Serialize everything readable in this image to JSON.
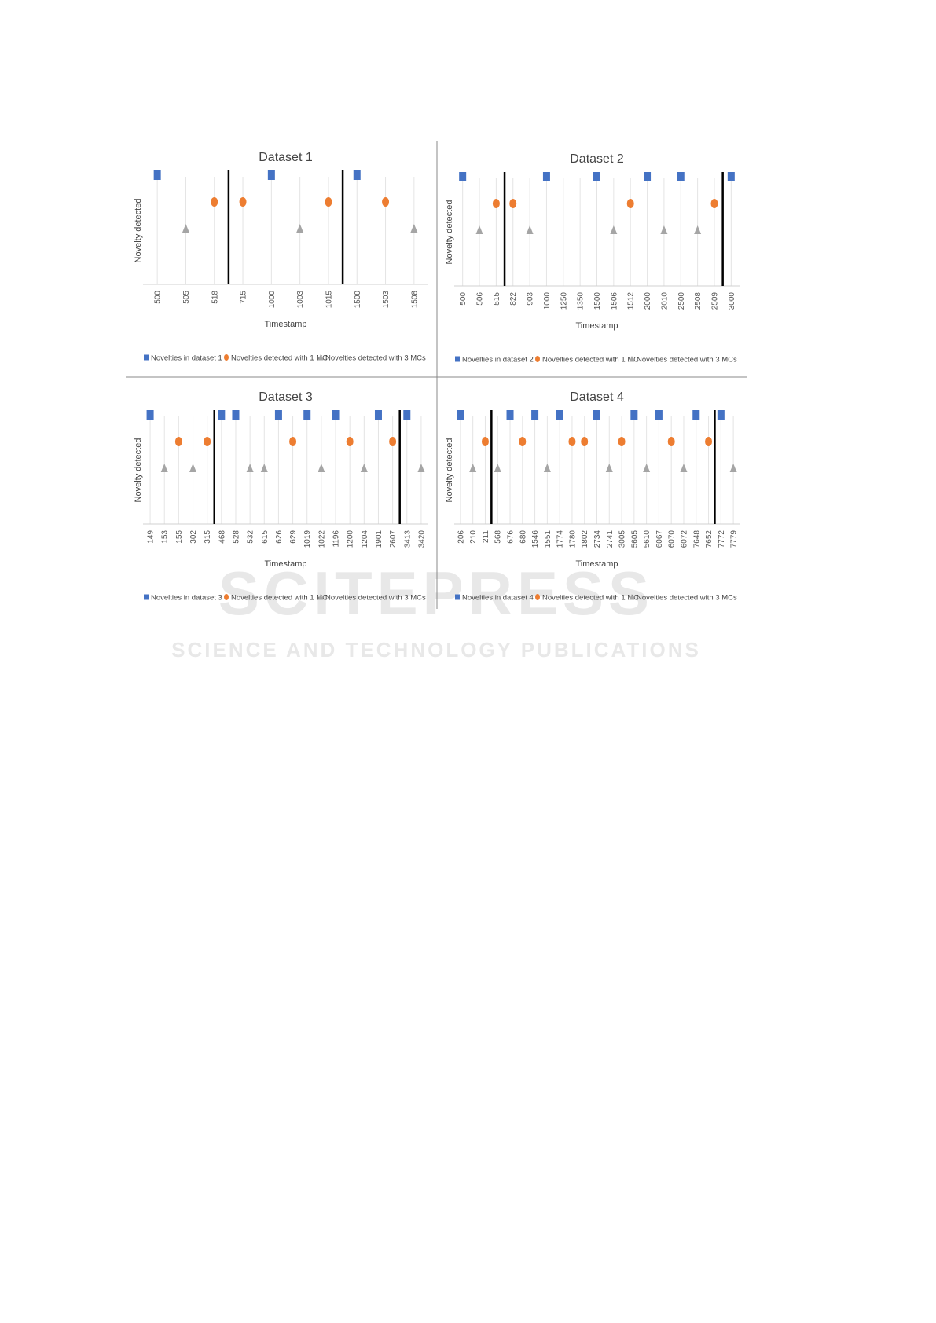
{
  "watermark": {
    "title": "SCITEPRESS",
    "subtitle": "SCIENCE AND TECHNOLOGY PUBLICATIONS"
  },
  "chart_data": [
    {
      "type": "event",
      "title": "Dataset 1",
      "y_label": "Novelty detected",
      "x_label": "Timestamp",
      "categories": [
        "500",
        "505",
        "518",
        "715",
        "1000",
        "1003",
        "1015",
        "1500",
        "1503",
        "1508"
      ],
      "series": [
        {
          "name": "Novelties in dataset 1",
          "color": "#4472c4",
          "marker": "square",
          "values": [
            1,
            null,
            null,
            null,
            1,
            null,
            null,
            1,
            null,
            null
          ]
        },
        {
          "name": "Novelties detected with 1 MC",
          "color": "#ed7d31",
          "marker": "circle",
          "values": [
            null,
            null,
            1,
            1,
            null,
            null,
            1,
            null,
            1,
            null
          ]
        },
        {
          "name": "Novelties detected with 3 MCs",
          "color": "#a5a5a5",
          "marker": "triangle",
          "values": [
            null,
            1,
            null,
            null,
            null,
            1,
            null,
            null,
            null,
            1
          ]
        }
      ],
      "drift_after": [
        "518",
        "1015"
      ]
    },
    {
      "type": "event",
      "title": "Dataset 2",
      "y_label": "Novelty detected",
      "x_label": "Timestamp",
      "categories": [
        "500",
        "506",
        "515",
        "822",
        "903",
        "1000",
        "1250",
        "1350",
        "1500",
        "1506",
        "1512",
        "2000",
        "2010",
        "2500",
        "2508",
        "2509",
        "3000"
      ],
      "series": [
        {
          "name": "Novelties in dataset 2",
          "color": "#4472c4",
          "marker": "square",
          "values": [
            1,
            null,
            null,
            null,
            null,
            1,
            null,
            null,
            1,
            null,
            null,
            1,
            null,
            1,
            null,
            null,
            1
          ]
        },
        {
          "name": "Novelties detected with 1 MC",
          "color": "#ed7d31",
          "marker": "circle",
          "values": [
            null,
            null,
            1,
            1,
            null,
            null,
            null,
            null,
            null,
            null,
            1,
            null,
            null,
            null,
            null,
            1,
            null
          ]
        },
        {
          "name": "Novelties detected with 3 MCs",
          "color": "#a5a5a5",
          "marker": "triangle",
          "values": [
            null,
            1,
            null,
            null,
            1,
            null,
            null,
            null,
            null,
            1,
            null,
            null,
            1,
            null,
            1,
            null,
            null
          ]
        }
      ],
      "drift_after": [
        "515",
        "2509"
      ]
    },
    {
      "type": "event",
      "title": "Dataset 3",
      "y_label": "Novelty detected",
      "x_label": "Timestamp",
      "categories": [
        "149",
        "153",
        "155",
        "302",
        "315",
        "468",
        "528",
        "532",
        "615",
        "626",
        "629",
        "1019",
        "1022",
        "1196",
        "1200",
        "1204",
        "1901",
        "2607",
        "3413",
        "3420"
      ],
      "series": [
        {
          "name": "Novelties in dataset 3",
          "color": "#4472c4",
          "marker": "square",
          "values": [
            1,
            null,
            null,
            null,
            null,
            1,
            1,
            null,
            null,
            1,
            null,
            1,
            null,
            1,
            null,
            null,
            1,
            null,
            1,
            null
          ]
        },
        {
          "name": "Novelties detected with 1 MC",
          "color": "#ed7d31",
          "marker": "circle",
          "values": [
            null,
            null,
            1,
            null,
            1,
            null,
            null,
            null,
            null,
            null,
            1,
            null,
            null,
            null,
            1,
            null,
            null,
            1,
            null,
            null
          ]
        },
        {
          "name": "Novelties detected with 3 MCs",
          "color": "#a5a5a5",
          "marker": "triangle",
          "values": [
            null,
            1,
            null,
            1,
            null,
            null,
            null,
            1,
            1,
            null,
            null,
            null,
            1,
            null,
            null,
            1,
            null,
            null,
            null,
            1
          ]
        }
      ],
      "drift_after": [
        "315",
        "2607"
      ]
    },
    {
      "type": "event",
      "title": "Dataset 4",
      "y_label": "Novelty detected",
      "x_label": "Timestamp",
      "categories": [
        "206",
        "210",
        "211",
        "568",
        "676",
        "680",
        "1546",
        "1551",
        "1774",
        "1780",
        "1802",
        "2734",
        "2741",
        "3005",
        "5605",
        "5610",
        "6067",
        "6070",
        "6072",
        "7648",
        "7652",
        "7772",
        "7779"
      ],
      "series": [
        {
          "name": "Novelties in dataset 4",
          "color": "#4472c4",
          "marker": "square",
          "values": [
            1,
            null,
            null,
            null,
            1,
            null,
            1,
            null,
            1,
            null,
            null,
            1,
            null,
            null,
            1,
            null,
            1,
            null,
            null,
            1,
            null,
            1,
            null
          ]
        },
        {
          "name": "Novelties detected with 1 MC",
          "color": "#ed7d31",
          "marker": "circle",
          "values": [
            null,
            null,
            1,
            null,
            null,
            1,
            null,
            null,
            null,
            1,
            1,
            null,
            null,
            1,
            null,
            null,
            null,
            1,
            null,
            null,
            1,
            null,
            null
          ]
        },
        {
          "name": "Novelties detected with 3 MCs",
          "color": "#a5a5a5",
          "marker": "triangle",
          "values": [
            null,
            1,
            null,
            1,
            null,
            null,
            null,
            1,
            null,
            null,
            null,
            null,
            1,
            null,
            null,
            1,
            null,
            null,
            1,
            null,
            null,
            null,
            1
          ]
        }
      ],
      "drift_after": [
        "211",
        "7652"
      ]
    }
  ]
}
